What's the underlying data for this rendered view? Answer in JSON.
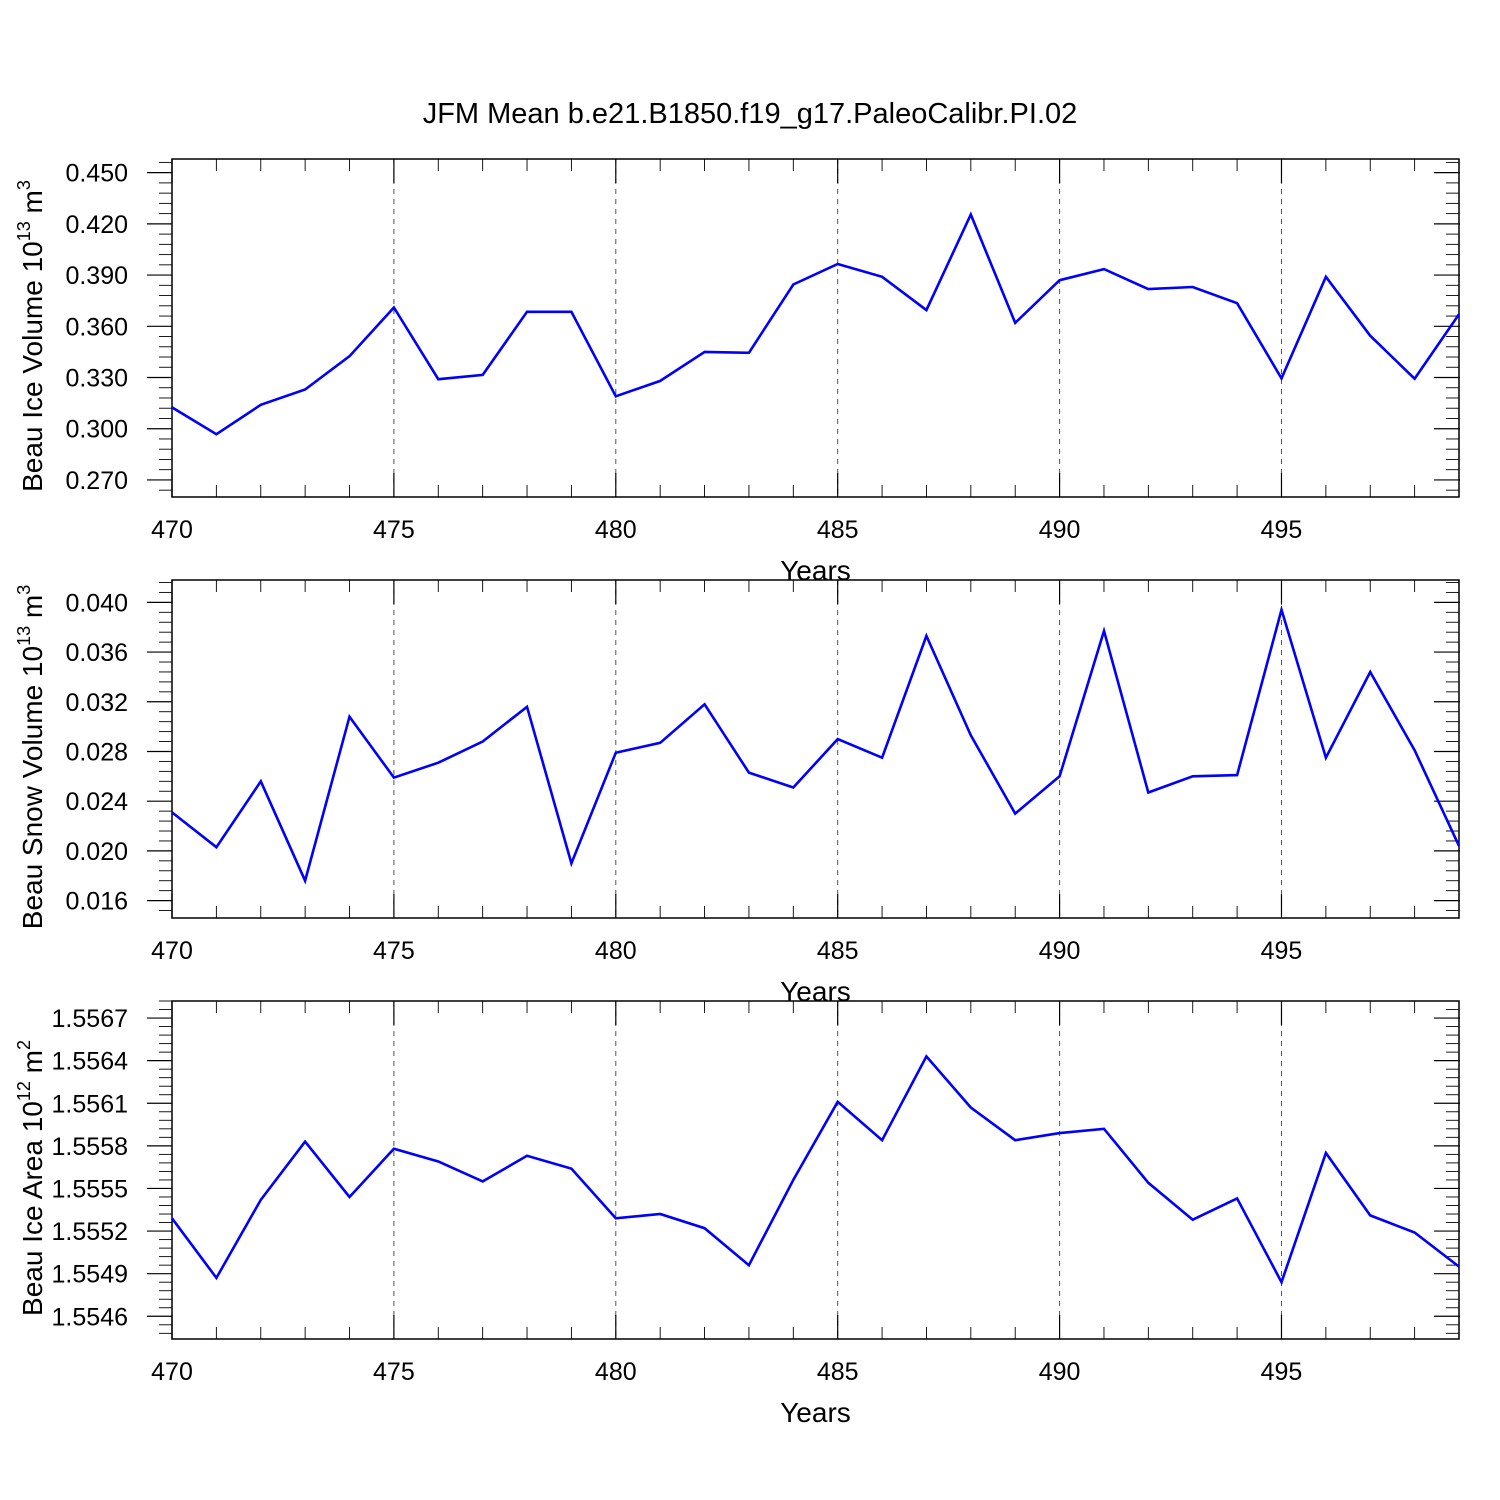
{
  "title": "JFM Mean b.e21.B1850.f19_g17.PaleoCalibr.PI.02",
  "colors": {
    "series": "#0000ff",
    "grid": "#555555",
    "axis": "#000000"
  },
  "chart_data": [
    {
      "type": "line",
      "xlabel": "Years",
      "ylabel": "Beau Ice Volume 10",
      "ylabel_exp": "13",
      "ylabel_unit": " m",
      "ylabel_unit_exp": "3",
      "xlim": [
        470,
        499
      ],
      "ylim": [
        0.26,
        0.458
      ],
      "xticks": [
        470,
        475,
        480,
        485,
        490,
        495
      ],
      "xtick_labels": [
        "470",
        "475",
        "480",
        "485",
        "490",
        "495"
      ],
      "yticks": [
        0.27,
        0.3,
        0.33,
        0.36,
        0.39,
        0.42,
        0.45
      ],
      "ytick_labels": [
        "0.270",
        "0.300",
        "0.330",
        "0.360",
        "0.390",
        "0.420",
        "0.450"
      ],
      "grid": "vertical dashed at major x ticks",
      "x": [
        470,
        471,
        472,
        473,
        474,
        475,
        476,
        477,
        478,
        479,
        480,
        481,
        482,
        483,
        484,
        485,
        486,
        487,
        488,
        489,
        490,
        491,
        492,
        493,
        494,
        495,
        496,
        497,
        498,
        499
      ],
      "y": [
        0.3125,
        0.2968,
        0.314,
        0.323,
        0.3425,
        0.371,
        0.329,
        0.3315,
        0.3685,
        0.3685,
        0.319,
        0.328,
        0.345,
        0.3445,
        0.3845,
        0.3965,
        0.389,
        0.3695,
        0.4255,
        0.362,
        0.387,
        0.3935,
        0.3818,
        0.383,
        0.3735,
        0.3295,
        0.389,
        0.3545,
        0.3293,
        0.367
      ]
    },
    {
      "type": "line",
      "xlabel": "Years",
      "ylabel": "Beau Snow Volume 10",
      "ylabel_exp": "13",
      "ylabel_unit": " m",
      "ylabel_unit_exp": "3",
      "xlim": [
        470,
        499
      ],
      "ylim": [
        0.0146,
        0.0418
      ],
      "xticks": [
        470,
        475,
        480,
        485,
        490,
        495
      ],
      "xtick_labels": [
        "470",
        "475",
        "480",
        "485",
        "490",
        "495"
      ],
      "yticks": [
        0.016,
        0.02,
        0.024,
        0.028,
        0.032,
        0.036,
        0.04
      ],
      "ytick_labels": [
        "0.016",
        "0.020",
        "0.024",
        "0.028",
        "0.032",
        "0.036",
        "0.040"
      ],
      "grid": "vertical dashed at major x ticks",
      "x": [
        470,
        471,
        472,
        473,
        474,
        475,
        476,
        477,
        478,
        479,
        480,
        481,
        482,
        483,
        484,
        485,
        486,
        487,
        488,
        489,
        490,
        491,
        492,
        493,
        494,
        495,
        496,
        497,
        498,
        499
      ],
      "y": [
        0.0231,
        0.0203,
        0.0256,
        0.0176,
        0.0308,
        0.0259,
        0.0271,
        0.0288,
        0.0316,
        0.019,
        0.0279,
        0.0287,
        0.0318,
        0.0263,
        0.0251,
        0.029,
        0.0275,
        0.0373,
        0.0293,
        0.023,
        0.026,
        0.0377,
        0.0247,
        0.026,
        0.0261,
        0.0394,
        0.0275,
        0.0344,
        0.0281,
        0.0204
      ]
    },
    {
      "type": "line",
      "xlabel": "Years",
      "ylabel": "Beau Ice Area 10",
      "ylabel_exp": "12",
      "ylabel_unit": " m",
      "ylabel_unit_exp": "2",
      "xlim": [
        470,
        499
      ],
      "ylim": [
        1.55444,
        1.55682
      ],
      "xticks": [
        470,
        475,
        480,
        485,
        490,
        495
      ],
      "xtick_labels": [
        "470",
        "475",
        "480",
        "485",
        "490",
        "495"
      ],
      "yticks": [
        1.5546,
        1.5549,
        1.5552,
        1.5555,
        1.5558,
        1.5561,
        1.5564,
        1.5567
      ],
      "ytick_labels": [
        "1.5546",
        "1.5549",
        "1.5552",
        "1.5555",
        "1.5558",
        "1.5561",
        "1.5564",
        "1.5567"
      ],
      "grid": "vertical dashed at major x ticks",
      "x": [
        470,
        471,
        472,
        473,
        474,
        475,
        476,
        477,
        478,
        479,
        480,
        481,
        482,
        483,
        484,
        485,
        486,
        487,
        488,
        489,
        490,
        491,
        492,
        493,
        494,
        495,
        496,
        497,
        498,
        499
      ],
      "y": [
        1.55529,
        1.55487,
        1.55542,
        1.55583,
        1.55544,
        1.55578,
        1.55569,
        1.55555,
        1.55573,
        1.55564,
        1.55529,
        1.55532,
        1.55522,
        1.55496,
        1.55556,
        1.55611,
        1.55584,
        1.55643,
        1.55607,
        1.55584,
        1.55589,
        1.55592,
        1.55554,
        1.55528,
        1.55543,
        1.55484,
        1.55575,
        1.55531,
        1.55519,
        1.55495
      ]
    }
  ]
}
